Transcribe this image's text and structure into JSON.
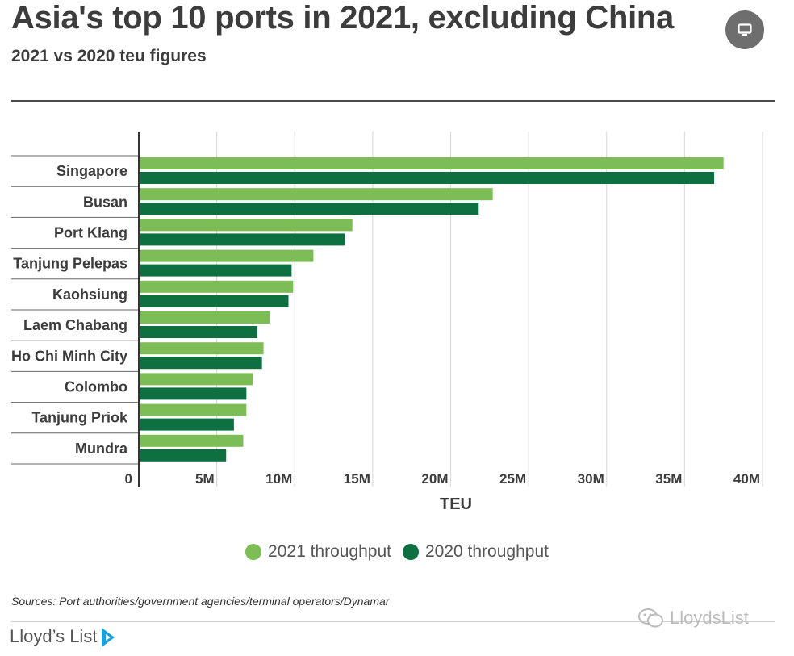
{
  "header": {
    "title": "Asia's top 10 ports in 2021, excluding China",
    "subtitle": "2021 vs 2020 teu figures"
  },
  "toolbar": {
    "view_icon": "monitor-icon"
  },
  "chart_data": {
    "type": "bar",
    "orientation": "horizontal",
    "categories": [
      "Singapore",
      "Busan",
      "Port Klang",
      "Tanjung Pelepas",
      "Kaohsiung",
      "Laem Chabang",
      "Ho Chi Minh City",
      "Colombo",
      "Tanjung Priok",
      "Mundra"
    ],
    "series": [
      {
        "name": "2021 throughput",
        "color": "#7dbd56",
        "values": [
          37.5,
          22.7,
          13.7,
          11.2,
          9.9,
          8.4,
          8.0,
          7.3,
          6.9,
          6.7
        ]
      },
      {
        "name": "2020 throughput",
        "color": "#0e7040",
        "values": [
          36.9,
          21.8,
          13.2,
          9.8,
          9.6,
          7.6,
          7.9,
          6.9,
          6.1,
          5.6
        ]
      }
    ],
    "xlim": [
      0,
      40
    ],
    "xticks": [
      "0",
      "5M",
      "10M",
      "15M",
      "20M",
      "25M",
      "30M",
      "35M",
      "40M"
    ],
    "xtick_values": [
      0,
      5,
      10,
      15,
      20,
      25,
      30,
      35,
      40
    ],
    "xlabel": "TEU",
    "grid": true,
    "legend_position": "bottom"
  },
  "legend": {
    "items": [
      {
        "label": "2021 throughput",
        "color": "#7dbd56"
      },
      {
        "label": "2020 throughput",
        "color": "#0e7040"
      }
    ]
  },
  "footer": {
    "source": "Sources: Port authorities/government agencies/terminal operators/Dynamar",
    "brand": "Lloyd’s List",
    "watermark": "LloydsList"
  }
}
